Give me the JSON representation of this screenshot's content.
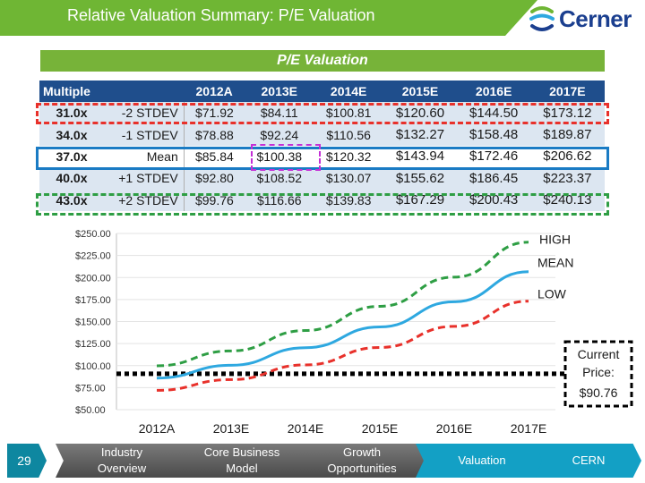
{
  "header": {
    "title": "Relative Valuation Summary: P/E Valuation",
    "logo_text": "Cerner",
    "logo_icon": "cerner-logo-icon"
  },
  "table": {
    "title": "P/E Valuation",
    "headers": [
      "Multiple",
      "2012A",
      "2013E",
      "2014E",
      "2015E",
      "2016E",
      "2017E"
    ],
    "rows": [
      {
        "multiple": "31.0x",
        "stdev": "-2 STDEV",
        "values": [
          "$71.92",
          "$84.11",
          "$100.81",
          "$120.60",
          "$144.50",
          "$173.12"
        ]
      },
      {
        "multiple": "34.0x",
        "stdev": "-1 STDEV",
        "values": [
          "$78.88",
          "$92.24",
          "$110.56",
          "$132.27",
          "$158.48",
          "$189.87"
        ]
      },
      {
        "multiple": "37.0x",
        "stdev": "Mean",
        "values": [
          "$85.84",
          "$100.38",
          "$120.32",
          "$143.94",
          "$172.46",
          "$206.62"
        ]
      },
      {
        "multiple": "40.0x",
        "stdev": "+1 STDEV",
        "values": [
          "$92.80",
          "$108.52",
          "$130.07",
          "$155.62",
          "$186.45",
          "$223.37"
        ]
      },
      {
        "multiple": "43.0x",
        "stdev": "+2 STDEV",
        "values": [
          "$99.76",
          "$116.66",
          "$139.83",
          "$167.29",
          "$200.43",
          "$240.13"
        ]
      }
    ]
  },
  "colors": {
    "green": "#6fb634",
    "navy": "#1f4e8c",
    "low": "#e8312b",
    "mean": "#2ea8e0",
    "high": "#2e9e44",
    "purple": "#c42fd6",
    "blue_box": "#1a7bc4"
  },
  "chart_data": {
    "type": "line",
    "categories": [
      "2012A",
      "2013E",
      "2014E",
      "2015E",
      "2016E",
      "2017E"
    ],
    "series": [
      {
        "name": "LOW",
        "values": [
          71.92,
          84.11,
          100.81,
          120.6,
          144.5,
          173.12
        ],
        "style": "dashed"
      },
      {
        "name": "MEAN",
        "values": [
          85.84,
          100.38,
          120.32,
          143.94,
          172.46,
          206.62
        ],
        "style": "solid"
      },
      {
        "name": "HIGH",
        "values": [
          99.76,
          116.66,
          139.83,
          167.29,
          200.43,
          240.13
        ],
        "style": "dashed"
      }
    ],
    "current_price": 90.76,
    "current_price_label": [
      "Current",
      "Price:",
      "$90.76"
    ],
    "yticks": [
      "$250.00",
      "$225.00",
      "$200.00",
      "$175.00",
      "$150.00",
      "$125.00",
      "$100.00",
      "$75.00",
      "$50.00"
    ],
    "ylim": [
      50,
      250
    ],
    "labels": {
      "high": "HIGH",
      "mean": "MEAN",
      "low": "LOW"
    }
  },
  "nav": {
    "page_number": "29",
    "items": [
      {
        "line1": "Industry",
        "line2": "Overview"
      },
      {
        "line1": "Core Business",
        "line2": "Model"
      },
      {
        "line1": "Growth",
        "line2": "Opportunities"
      },
      {
        "line1": "Valuation",
        "line2": ""
      },
      {
        "line1": "CERN",
        "line2": ""
      }
    ]
  }
}
